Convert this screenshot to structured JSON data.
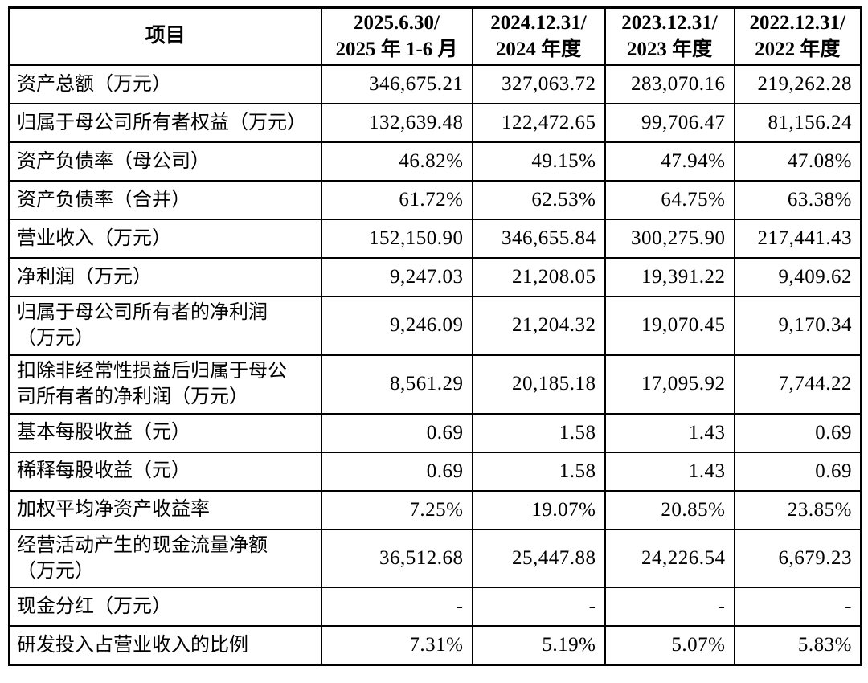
{
  "page": {
    "background_color": "#ffffff",
    "text_color": "#000000",
    "border_color": "#000000"
  },
  "table": {
    "header": {
      "item_label": "项目",
      "periods": [
        {
          "line1": "2025.6.30/",
          "line2": "2025 年 1-6 月"
        },
        {
          "line1": "2024.12.31/",
          "line2": "2024 年度"
        },
        {
          "line1": "2023.12.31/",
          "line2": "2023 年度"
        },
        {
          "line1": "2022.12.31/",
          "line2": "2022 年度"
        }
      ]
    },
    "rows": [
      {
        "label": "资产总额（万元）",
        "values": [
          "346,675.21",
          "327,063.72",
          "283,070.16",
          "219,262.28"
        ]
      },
      {
        "label": "归属于母公司所有者权益（万元）",
        "values": [
          "132,639.48",
          "122,472.65",
          "99,706.47",
          "81,156.24"
        ]
      },
      {
        "label": "资产负债率（母公司）",
        "values": [
          "46.82%",
          "49.15%",
          "47.94%",
          "47.08%"
        ]
      },
      {
        "label": "资产负债率（合并）",
        "values": [
          "61.72%",
          "62.53%",
          "64.75%",
          "63.38%"
        ]
      },
      {
        "label": "营业收入（万元）",
        "values": [
          "152,150.90",
          "346,655.84",
          "300,275.90",
          "217,441.43"
        ]
      },
      {
        "label": "净利润（万元）",
        "values": [
          "9,247.03",
          "21,208.05",
          "19,391.22",
          "9,409.62"
        ]
      },
      {
        "label": "归属于母公司所有者的净利润\n（万元）",
        "values": [
          "9,246.09",
          "21,204.32",
          "19,070.45",
          "9,170.34"
        ]
      },
      {
        "label": "扣除非经常性损益后归属于母公\n司所有者的净利润（万元）",
        "values": [
          "8,561.29",
          "20,185.18",
          "17,095.92",
          "7,744.22"
        ]
      },
      {
        "label": "基本每股收益（元）",
        "values": [
          "0.69",
          "1.58",
          "1.43",
          "0.69"
        ]
      },
      {
        "label": "稀释每股收益（元）",
        "values": [
          "0.69",
          "1.58",
          "1.43",
          "0.69"
        ]
      },
      {
        "label": "加权平均净资产收益率",
        "values": [
          "7.25%",
          "19.07%",
          "20.85%",
          "23.85%"
        ]
      },
      {
        "label": "经营活动产生的现金流量净额\n（万元）",
        "values": [
          "36,512.68",
          "25,447.88",
          "24,226.54",
          "6,679.23"
        ]
      },
      {
        "label": "现金分红（万元）",
        "values": [
          "-",
          "-",
          "-",
          "-"
        ]
      },
      {
        "label": "研发投入占营业收入的比例",
        "values": [
          "7.31%",
          "5.19%",
          "5.07%",
          "5.83%"
        ]
      }
    ]
  }
}
